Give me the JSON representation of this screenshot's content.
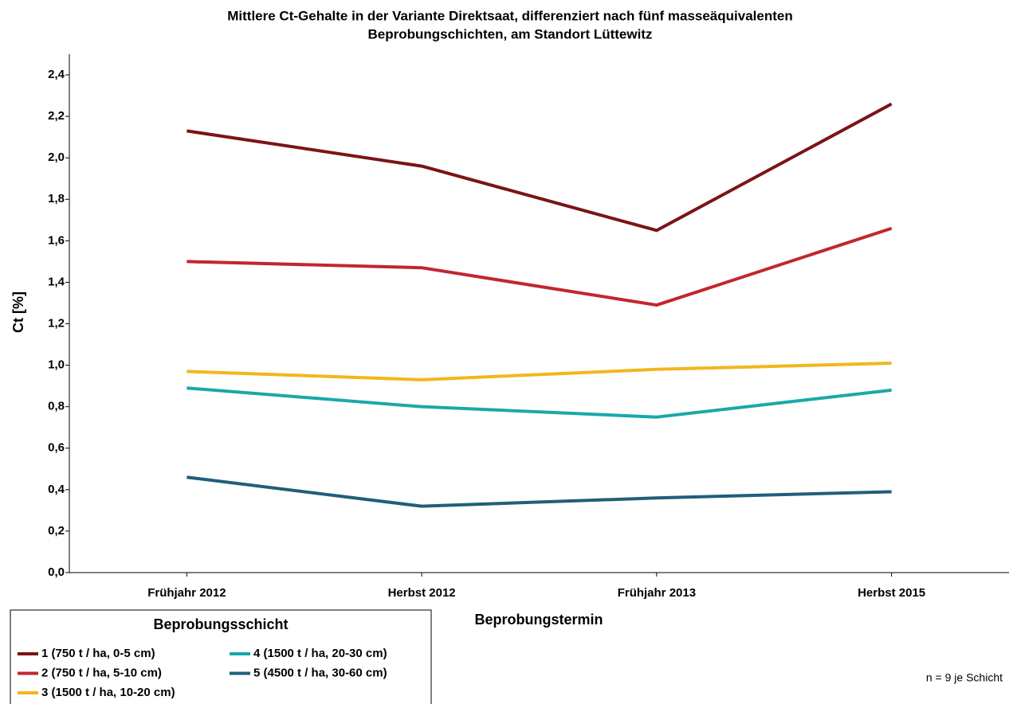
{
  "chart_data": {
    "type": "line",
    "title": [
      "Mittlere Ct-Gehalte in der Variante Direktsaat, differenziert nach fünf masseäquivalenten",
      "Beprobungschichten, am Standort Lüttewitz"
    ],
    "x_label": "Beprobungstermin",
    "y_label": "Ct [%]",
    "annotation": "n = 9 je Schicht",
    "legend_title": "Beprobungsschicht",
    "categories": [
      "Frühjahr 2012",
      "Herbst 2012",
      "Frühjahr 2013",
      "Herbst 2015"
    ],
    "series": [
      {
        "name": "1 (750 t / ha, 0-5 cm)",
        "color": "#7b1416",
        "values": [
          2.13,
          1.96,
          1.65,
          2.26
        ]
      },
      {
        "name": "2 (750 t / ha, 5-10 cm)",
        "color": "#c1272d",
        "values": [
          1.5,
          1.47,
          1.29,
          1.66
        ]
      },
      {
        "name": "3 (1500 t / ha, 10-20 cm)",
        "color": "#f2b71d",
        "values": [
          0.97,
          0.93,
          0.98,
          1.01
        ]
      },
      {
        "name": "4 (1500 t / ha, 20-30 cm)",
        "color": "#1aa8a8",
        "values": [
          0.89,
          0.8,
          0.75,
          0.88
        ]
      },
      {
        "name": "5 (4500 t / ha, 30-60 cm)",
        "color": "#1f5f7a",
        "values": [
          0.46,
          0.32,
          0.36,
          0.39
        ]
      }
    ],
    "ylim": [
      0,
      2.5
    ],
    "yticks": [
      {
        "value": 0,
        "label": "0,0"
      },
      {
        "value": 0.2,
        "label": "0,2"
      },
      {
        "value": 0.4,
        "label": "0,4"
      },
      {
        "value": 0.6,
        "label": "0,6"
      },
      {
        "value": 0.8,
        "label": "0,8"
      },
      {
        "value": 1.0,
        "label": "1,0"
      },
      {
        "value": 1.2,
        "label": "1,2"
      },
      {
        "value": 1.4,
        "label": "1,4"
      },
      {
        "value": 1.6,
        "label": "1,6"
      },
      {
        "value": 1.8,
        "label": "1,8"
      },
      {
        "value": 2.0,
        "label": "2,0"
      },
      {
        "value": 2.2,
        "label": "2,2"
      },
      {
        "value": 2.4,
        "label": "2,4"
      }
    ],
    "grid": false
  }
}
